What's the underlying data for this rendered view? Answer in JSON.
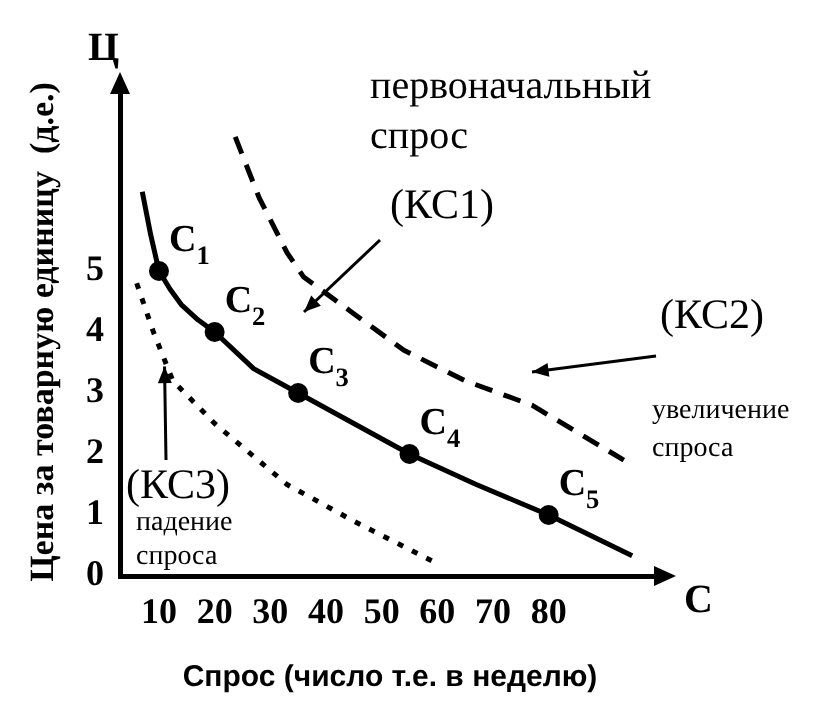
{
  "chart_data": {
    "type": "line",
    "xlabel": "Спрос (число т.е. в неделю)",
    "ylabel": "Цена за товарную единицу  (д.е.)",
    "xlim": [
      3,
      100
    ],
    "xticks": [
      10,
      20,
      30,
      40,
      50,
      60,
      70,
      80
    ],
    "ylim": [
      0,
      8
    ],
    "yticks": [
      0,
      1,
      2,
      3,
      4,
      5
    ],
    "grid": false,
    "legend": false,
    "series": [
      {
        "color": "#000000",
        "line_style": "solid",
        "marker": "none",
        "x": [
          7,
          8.5,
          10,
          12,
          14,
          17,
          20,
          27,
          35,
          45,
          55,
          67,
          80,
          95
        ],
        "values": [
          6.3,
          5.6,
          5,
          4.7,
          4.45,
          4.2,
          4,
          3.4,
          3,
          2.5,
          2,
          1.5,
          1,
          0.33
        ]
      },
      {
        "color": "#000000",
        "line_style": "dashed",
        "marker": "none",
        "x": [
          23.7,
          28,
          33,
          36,
          45,
          54,
          65,
          77,
          93.5
        ],
        "values": [
          7.2,
          6.2,
          5.3,
          4.9,
          4.3,
          3.7,
          3.2,
          2.8,
          1.9
        ]
      },
      {
        "color": "#000000",
        "line_style": "dotted",
        "marker": "none",
        "x": [
          6,
          9,
          12.5,
          20,
          33,
          45,
          59
        ],
        "values": [
          4.8,
          4,
          3.2,
          2.5,
          1.5,
          0.9,
          0.25
        ]
      },
      {
        "type": "scatter",
        "color": "#000000",
        "marker": "circle",
        "x": [
          10,
          20,
          35,
          55,
          80
        ],
        "values": [
          5,
          4,
          3,
          2,
          1
        ]
      }
    ],
    "annotations": [
      "первоначальный спрос",
      "(КС1)",
      "(КС2)",
      "увеличение спроса",
      {
        "text": "(КС3)",
        "x": 11,
        "y": 3.5
      },
      "падение спроса",
      {
        "text": "C$_{1}$",
        "x": 10,
        "y": 5
      },
      {
        "text": "C$_{2}$",
        "x": 20,
        "y": 4
      },
      {
        "text": "C$_{3}$",
        "x": 35,
        "y": 3
      },
      {
        "text": "C$_{4}$",
        "x": 55,
        "y": 2
      },
      {
        "text": "C$_{5}$",
        "x": 80,
        "y": 1
      },
      "Ц",
      "С"
    ]
  }
}
